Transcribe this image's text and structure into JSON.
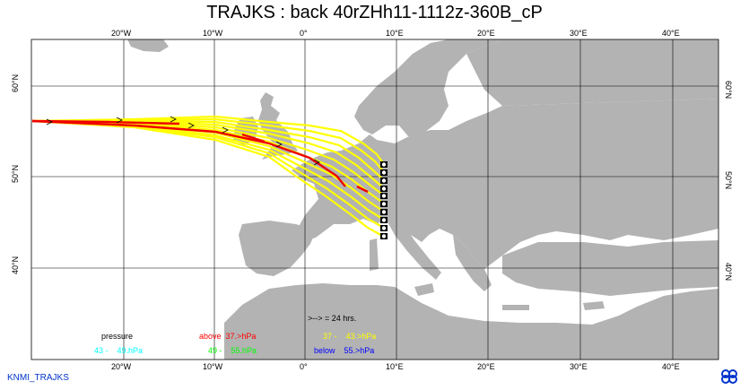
{
  "title": "TRAJKS : back 40rZHh11-1112z-360B_cP",
  "footer_label": "KNMI_TRAJKS",
  "logo_icon": "knmi-logo-icon",
  "map": {
    "lon_range": [
      -30,
      46
    ],
    "lat_range": [
      30,
      65
    ],
    "lon_ticks": [
      "20°W",
      "10°W",
      "0°",
      "10°E",
      "20°E",
      "30°E",
      "40°E"
    ],
    "lat_ticks": [
      "60°N",
      "50°N",
      "40°N"
    ],
    "colors": {
      "land": "#b3b3b3",
      "sea": "#ffffff",
      "grid": "#000000"
    }
  },
  "legend": {
    "time_marker": ">--> = 24 hrs.",
    "pressure_label": "pressure",
    "entries": [
      {
        "label": "above",
        "range": "37.>hPa",
        "color": "#ff0000"
      },
      {
        "label": "37 -",
        "range": "43.>hPa",
        "color": "#ffff00"
      },
      {
        "label": "43 -",
        "range": "49.hPa",
        "color": "#00ffff"
      },
      {
        "label": "49 -",
        "range": "55.hPa",
        "color": "#00ff00"
      },
      {
        "label": "below",
        "range": "55.>hPa",
        "color": "#0000ff"
      }
    ]
  },
  "trajectories": {
    "start_points": [
      {
        "lon": 8.7,
        "lat": 51.5
      },
      {
        "lon": 8.7,
        "lat": 50.7
      },
      {
        "lon": 8.7,
        "lat": 49.8
      },
      {
        "lon": 8.7,
        "lat": 48.9
      },
      {
        "lon": 8.7,
        "lat": 48.1
      },
      {
        "lon": 8.7,
        "lat": 47.2
      },
      {
        "lon": 8.7,
        "lat": 46.4
      },
      {
        "lon": 8.7,
        "lat": 45.5
      },
      {
        "lon": 8.7,
        "lat": 44.6
      },
      {
        "lon": 8.7,
        "lat": 43.8
      }
    ]
  }
}
